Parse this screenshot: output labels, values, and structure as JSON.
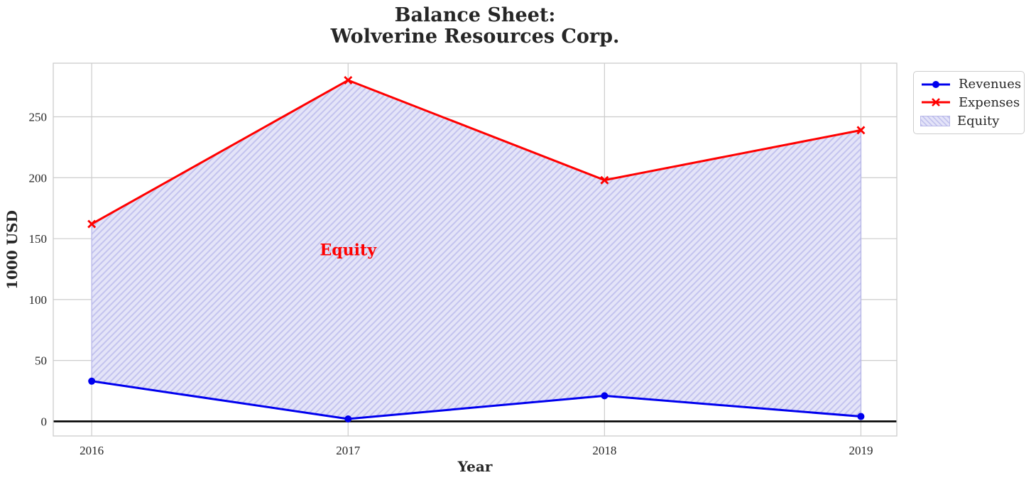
{
  "title": {
    "line1": "Balance Sheet:",
    "line2": "Wolverine Resources Corp."
  },
  "axes": {
    "xlabel": "Year",
    "ylabel": "1000 USD"
  },
  "legend": {
    "items": [
      {
        "label": "Revenues"
      },
      {
        "label": "Expenses"
      },
      {
        "label": "Equity"
      }
    ]
  },
  "annotation": {
    "text": "Equity"
  },
  "colors": {
    "revenues": "#0000ee",
    "expenses": "#ff0000",
    "equity_fill": "#e4e4f8",
    "equity_hatch": "#c3c3ee",
    "equity_edge": "#b9b9e8",
    "grid": "#cccccc",
    "spine": "#cccccc",
    "text": "#262626",
    "zero_line": "#000000",
    "annotation_text": "#ff0000"
  },
  "chart_data": {
    "type": "line",
    "title": "Balance Sheet:\nWolverine Resources Corp.",
    "xlabel": "Year",
    "ylabel": "1000 USD",
    "x": [
      2016,
      2017,
      2018,
      2019
    ],
    "series": [
      {
        "name": "Revenues",
        "values": [
          33,
          2,
          21,
          4
        ],
        "color": "#0000ee",
        "marker": "o"
      },
      {
        "name": "Expenses",
        "values": [
          162,
          280,
          198,
          239
        ],
        "color": "#ff0000",
        "marker": "x"
      }
    ],
    "area": {
      "name": "Equity",
      "between": [
        "Revenues",
        "Expenses"
      ],
      "hatch": "/",
      "label": "Equity",
      "label_x": 2017,
      "label_y": 141
    },
    "yticks": [
      0,
      50,
      100,
      150,
      200,
      250
    ],
    "xticks": [
      2016,
      2017,
      2018,
      2019
    ],
    "ylim": [
      -12,
      294
    ],
    "xlim": [
      2015.85,
      2019.14
    ],
    "grid": true,
    "zero_line": true,
    "legend_position": "outside upper right"
  }
}
